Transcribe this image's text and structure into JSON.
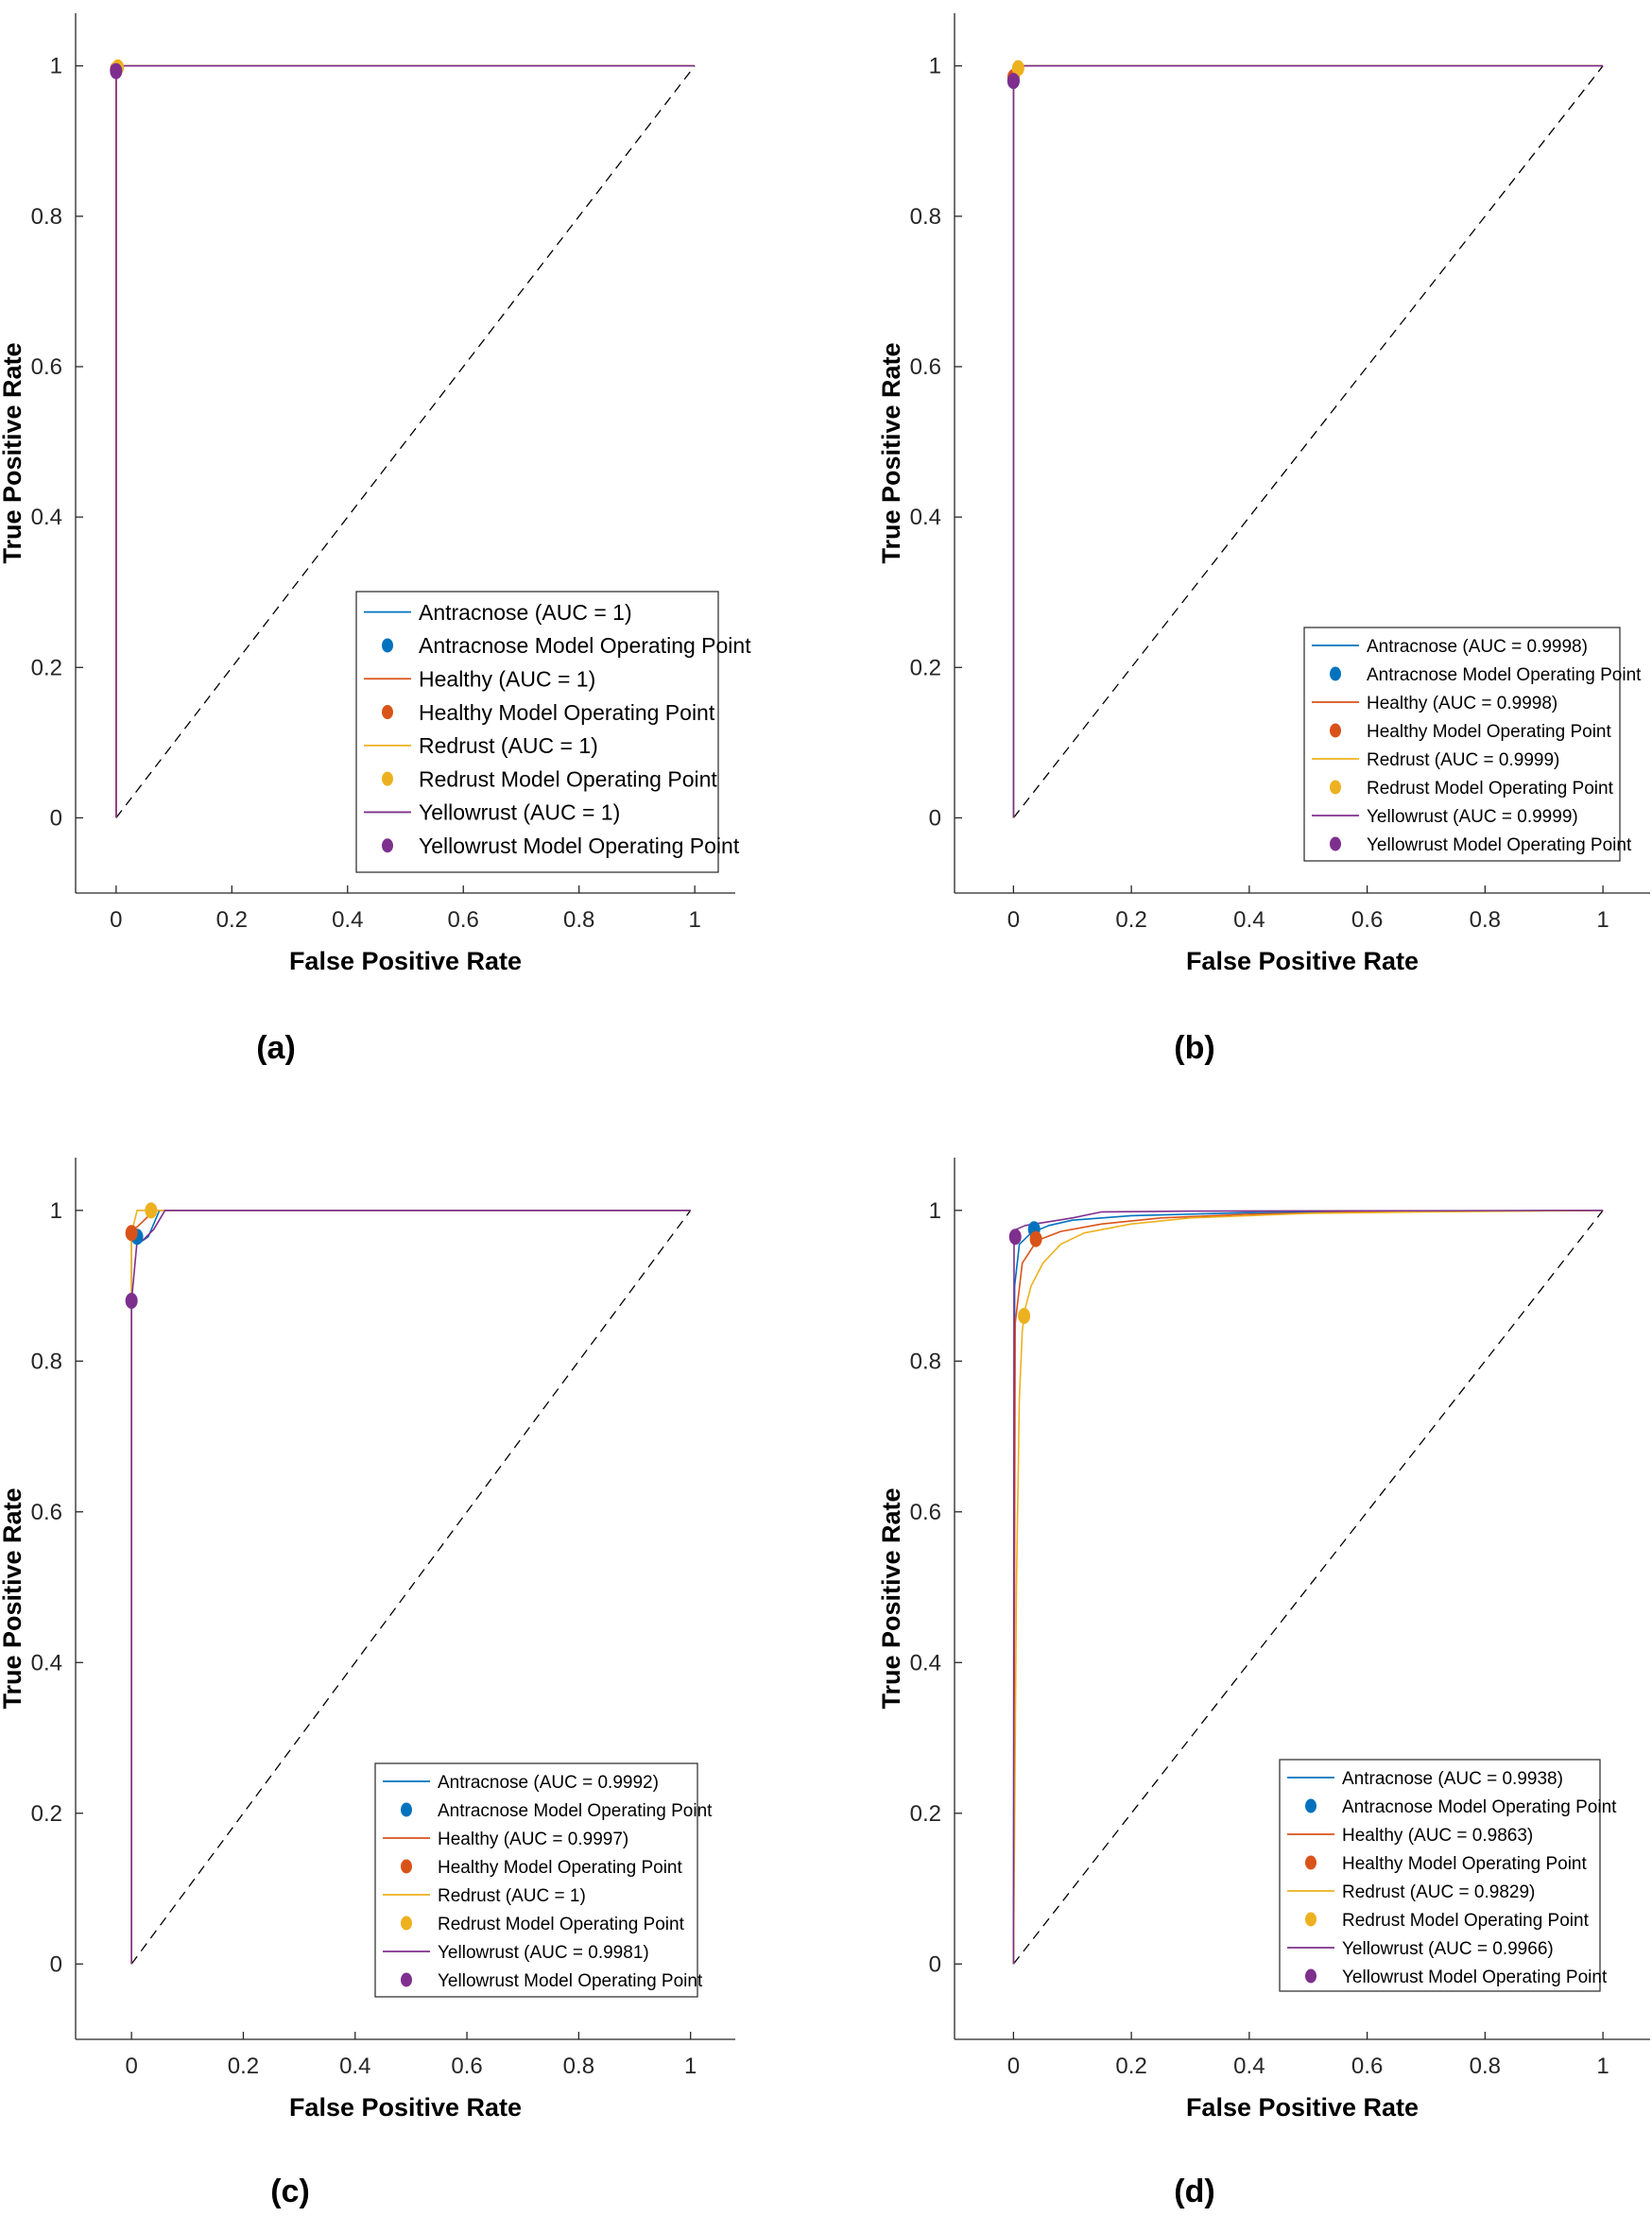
{
  "chart_data": [
    {
      "type": "line",
      "panel_label": "(a)",
      "xlabel": "False Positive Rate",
      "ylabel": "True Positive Rate",
      "xlim": [
        -0.07,
        1.07
      ],
      "ylim": [
        -0.1,
        1.07
      ],
      "xticks": [
        0,
        0.2,
        0.4,
        0.6,
        0.8,
        1
      ],
      "yticks": [
        0,
        0.2,
        0.4,
        0.6,
        0.8,
        1
      ],
      "xtick_labels": [
        "0",
        "0.2",
        "0.4",
        "0.6",
        "0.8",
        "1"
      ],
      "ytick_labels": [
        "0",
        "0.2",
        "0.4",
        "0.6",
        "0.8",
        "1"
      ],
      "legend_position": "bottom-right",
      "diagonal": true,
      "series": [
        {
          "name": "Antracnose (AUC = 1)",
          "color": "#0072BD",
          "x": [
            0,
            0,
            1
          ],
          "y": [
            0,
            1,
            1
          ]
        },
        {
          "name": "Healthy (AUC = 1)",
          "color": "#D95319",
          "x": [
            0,
            0,
            1
          ],
          "y": [
            0,
            1,
            1
          ]
        },
        {
          "name": "Redrust (AUC = 1)",
          "color": "#EDB120",
          "x": [
            0,
            0,
            1
          ],
          "y": [
            0,
            1,
            1
          ]
        },
        {
          "name": "Yellowrust (AUC = 1)",
          "color": "#7E2F8E",
          "x": [
            0,
            0,
            1
          ],
          "y": [
            0,
            1,
            1
          ]
        }
      ],
      "operating_points": [
        {
          "name": "Antracnose Model Operating Point",
          "color": "#0072BD",
          "x": 0.0,
          "y": 0.995
        },
        {
          "name": "Healthy Model Operating Point",
          "color": "#D95319",
          "x": 0.0,
          "y": 0.995
        },
        {
          "name": "Redrust Model Operating Point",
          "color": "#EDB120",
          "x": 0.003,
          "y": 0.998
        },
        {
          "name": "Yellowrust Model Operating Point",
          "color": "#7E2F8E",
          "x": 0.0,
          "y": 0.993
        }
      ]
    },
    {
      "type": "line",
      "panel_label": "(b)",
      "xlabel": "False Positive Rate",
      "ylabel": "True Positive Rate",
      "xlim": [
        -0.1,
        1.08
      ],
      "ylim": [
        -0.1,
        1.07
      ],
      "xticks": [
        0,
        0.2,
        0.4,
        0.6,
        0.8,
        1
      ],
      "yticks": [
        0,
        0.2,
        0.4,
        0.6,
        0.8,
        1
      ],
      "xtick_labels": [
        "0",
        "0.2",
        "0.4",
        "0.6",
        "0.8",
        "1"
      ],
      "ytick_labels": [
        "0",
        "0.2",
        "0.4",
        "0.6",
        "0.8",
        "1"
      ],
      "legend_position": "bottom-right",
      "diagonal": true,
      "series": [
        {
          "name": "Antracnose (AUC = 0.9998)",
          "color": "#0072BD",
          "x": [
            0,
            0,
            0.005,
            1
          ],
          "y": [
            0,
            0.985,
            1,
            1
          ]
        },
        {
          "name": "Healthy (AUC = 0.9998)",
          "color": "#D95319",
          "x": [
            0,
            0,
            0.006,
            1
          ],
          "y": [
            0,
            0.985,
            1,
            1
          ]
        },
        {
          "name": "Redrust (AUC = 0.9999)",
          "color": "#EDB120",
          "x": [
            0,
            0,
            0.004,
            1
          ],
          "y": [
            0,
            0.99,
            1,
            1
          ]
        },
        {
          "name": "Yellowrust (AUC = 0.9999)",
          "color": "#7E2F8E",
          "x": [
            0,
            0,
            0.003,
            1
          ],
          "y": [
            0,
            0.99,
            1,
            1
          ]
        }
      ],
      "operating_points": [
        {
          "name": "Antracnose Model Operating Point",
          "color": "#0072BD",
          "x": 0.0,
          "y": 0.98
        },
        {
          "name": "Healthy Model Operating Point",
          "color": "#D95319",
          "x": 0.0,
          "y": 0.985
        },
        {
          "name": "Redrust Model Operating Point",
          "color": "#EDB120",
          "x": 0.008,
          "y": 0.997
        },
        {
          "name": "Yellowrust Model Operating Point",
          "color": "#7E2F8E",
          "x": 0.0,
          "y": 0.98
        }
      ]
    },
    {
      "type": "line",
      "panel_label": "(c)",
      "xlabel": "False Positive Rate",
      "ylabel": "True Positive Rate",
      "xlim": [
        -0.1,
        1.08
      ],
      "ylim": [
        -0.1,
        1.07
      ],
      "xticks": [
        0,
        0.2,
        0.4,
        0.6,
        0.8,
        1
      ],
      "yticks": [
        0,
        0.2,
        0.4,
        0.6,
        0.8,
        1
      ],
      "xtick_labels": [
        "0",
        "0.2",
        "0.4",
        "0.6",
        "0.8",
        "1"
      ],
      "ytick_labels": [
        "0",
        "0.2",
        "0.4",
        "0.6",
        "0.8",
        "1"
      ],
      "legend_position": "bottom-right",
      "diagonal": true,
      "series": [
        {
          "name": "Antracnose (AUC = 0.9992)",
          "color": "#0072BD",
          "x": [
            0,
            0,
            0.005,
            0.01,
            0.03,
            0.05,
            1
          ],
          "y": [
            0,
            0.97,
            0.97,
            0.955,
            0.965,
            1,
            1
          ]
        },
        {
          "name": "Healthy (AUC = 0.9997)",
          "color": "#D95319",
          "x": [
            0,
            0,
            0.005,
            0.02,
            0.04,
            1
          ],
          "y": [
            0,
            0.97,
            0.975,
            0.985,
            1,
            1
          ]
        },
        {
          "name": "Redrust (AUC = 1)",
          "color": "#EDB120",
          "x": [
            0,
            0,
            0.01,
            0.035,
            1
          ],
          "y": [
            0,
            0.97,
            1,
            1,
            1
          ]
        },
        {
          "name": "Yellowrust (AUC = 0.9981)",
          "color": "#7E2F8E",
          "x": [
            0,
            0,
            0.01,
            0.02,
            0.04,
            0.06,
            1
          ],
          "y": [
            0,
            0.88,
            0.96,
            0.96,
            0.975,
            1,
            1
          ]
        }
      ],
      "operating_points": [
        {
          "name": "Antracnose Model Operating Point",
          "color": "#0072BD",
          "x": 0.01,
          "y": 0.965
        },
        {
          "name": "Healthy Model Operating Point",
          "color": "#D95319",
          "x": 0.0,
          "y": 0.97
        },
        {
          "name": "Redrust Model Operating Point",
          "color": "#EDB120",
          "x": 0.035,
          "y": 1.0
        },
        {
          "name": "Yellowrust Model Operating Point",
          "color": "#7E2F8E",
          "x": 0.0,
          "y": 0.88
        }
      ]
    },
    {
      "type": "line",
      "panel_label": "(d)",
      "xlabel": "False Positive Rate",
      "ylabel": "True Positive Rate",
      "xlim": [
        -0.1,
        1.08
      ],
      "ylim": [
        -0.1,
        1.07
      ],
      "xticks": [
        0,
        0.2,
        0.4,
        0.6,
        0.8,
        1
      ],
      "yticks": [
        0,
        0.2,
        0.4,
        0.6,
        0.8,
        1
      ],
      "xtick_labels": [
        "0",
        "0.2",
        "0.4",
        "0.6",
        "0.8",
        "1"
      ],
      "ytick_labels": [
        "0",
        "0.2",
        "0.4",
        "0.6",
        "0.8",
        "1"
      ],
      "legend_position": "bottom-right",
      "diagonal": true,
      "series": [
        {
          "name": "Antracnose (AUC = 0.9938)",
          "color": "#0072BD",
          "x": [
            0,
            0.002,
            0.01,
            0.03,
            0.06,
            0.1,
            0.2,
            0.4,
            0.7,
            1
          ],
          "y": [
            0,
            0.9,
            0.955,
            0.97,
            0.98,
            0.987,
            0.993,
            0.997,
            0.999,
            1
          ]
        },
        {
          "name": "Healthy (AUC = 0.9863)",
          "color": "#D95319",
          "x": [
            0,
            0.003,
            0.015,
            0.04,
            0.08,
            0.15,
            0.25,
            0.4,
            0.6,
            0.8,
            1
          ],
          "y": [
            0,
            0.85,
            0.93,
            0.96,
            0.972,
            0.982,
            0.99,
            0.995,
            0.998,
            0.999,
            1
          ]
        },
        {
          "name": "Redrust (AUC = 0.9829)",
          "color": "#EDB120",
          "x": [
            0,
            0.005,
            0.01,
            0.015,
            0.02,
            0.03,
            0.05,
            0.08,
            0.12,
            0.2,
            0.3,
            0.5,
            0.7,
            1
          ],
          "y": [
            0,
            0.5,
            0.75,
            0.84,
            0.87,
            0.9,
            0.93,
            0.955,
            0.97,
            0.982,
            0.99,
            0.996,
            0.998,
            1
          ]
        },
        {
          "name": "Yellowrust (AUC = 0.9966)",
          "color": "#7E2F8E",
          "x": [
            0,
            0.001,
            0.005,
            0.02,
            0.06,
            0.1,
            0.15,
            0.3,
            1
          ],
          "y": [
            0,
            0.96,
            0.975,
            0.98,
            0.985,
            0.99,
            0.998,
            0.999,
            1
          ]
        }
      ],
      "operating_points": [
        {
          "name": "Antracnose Model Operating Point",
          "color": "#0072BD",
          "x": 0.035,
          "y": 0.975
        },
        {
          "name": "Healthy Model Operating Point",
          "color": "#D95319",
          "x": 0.038,
          "y": 0.962
        },
        {
          "name": "Redrust Model Operating Point",
          "color": "#EDB120",
          "x": 0.018,
          "y": 0.86
        },
        {
          "name": "Yellowrust Model Operating Point",
          "color": "#7E2F8E",
          "x": 0.003,
          "y": 0.965
        }
      ]
    }
  ]
}
